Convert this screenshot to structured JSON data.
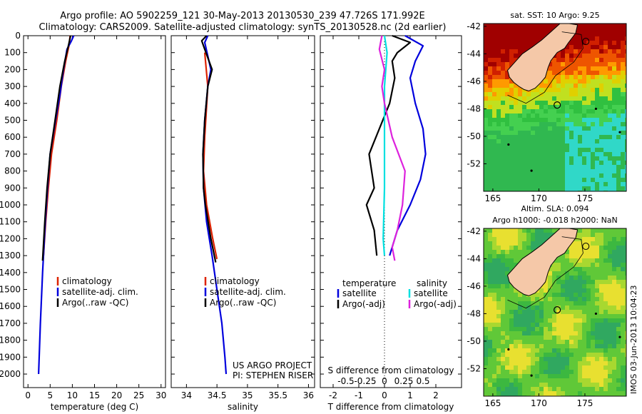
{
  "header": {
    "line1": "Argo profile: AO 5902259_121 30-May-2013 20130530_239 47.726S 171.992E",
    "line2": "Climatology: CARS2009. Satellite-adjusted climatology: synTS_20130528.nc (2d earlier)"
  },
  "credits": {
    "project": "US ARGO PROJECT",
    "pi": "PI: STEPHEN RISER"
  },
  "timestamp": "IMOS 03-Jun-2013 10:04:23",
  "colors": {
    "climatology": "#dd2200",
    "satellite": "#0000dd",
    "argo": "#000000",
    "salinity_satellite": "#00e0e0",
    "salinity_argo": "#dd22dd",
    "land": "#f5c8a8"
  },
  "chart_data": [
    {
      "id": "temperature",
      "type": "line",
      "xlabel": "temperature (deg C)",
      "xlim": [
        -1,
        31
      ],
      "ylim": [
        2080,
        0
      ],
      "xticks": [
        0,
        5,
        10,
        15,
        20,
        25,
        30
      ],
      "yticks": [
        0,
        100,
        200,
        300,
        400,
        500,
        600,
        700,
        800,
        900,
        1000,
        1100,
        1200,
        1300,
        1400,
        1500,
        1600,
        1700,
        1800,
        1900,
        2000
      ],
      "legend": [
        "climatology",
        "satellite-adj. clim.",
        "Argo(..raw -QC)"
      ],
      "series": [
        {
          "name": "climatology",
          "color": "#dd2200",
          "points": [
            [
              9.5,
              0
            ],
            [
              9.3,
              50
            ],
            [
              8.5,
              150
            ],
            [
              7.5,
              300
            ],
            [
              6.5,
              500
            ],
            [
              5.3,
              700
            ],
            [
              4.6,
              900
            ],
            [
              4.0,
              1100
            ],
            [
              3.5,
              1300
            ]
          ]
        },
        {
          "name": "satellite-adj. clim.",
          "color": "#0000dd",
          "points": [
            [
              10.3,
              0
            ],
            [
              9.8,
              30
            ],
            [
              8.8,
              80
            ],
            [
              8.0,
              200
            ],
            [
              7.2,
              350
            ],
            [
              6.2,
              500
            ],
            [
              5.0,
              700
            ],
            [
              4.4,
              900
            ],
            [
              3.9,
              1100
            ],
            [
              3.3,
              1400
            ],
            [
              2.8,
              1700
            ],
            [
              2.4,
              2000
            ]
          ]
        },
        {
          "name": "Argo(..raw -QC)",
          "color": "#000000",
          "points": [
            [
              9.6,
              0
            ],
            [
              9.2,
              50
            ],
            [
              8.3,
              150
            ],
            [
              7.2,
              300
            ],
            [
              6.1,
              500
            ],
            [
              5.0,
              700
            ],
            [
              4.3,
              900
            ],
            [
              3.8,
              1100
            ],
            [
              3.3,
              1330
            ]
          ]
        }
      ]
    },
    {
      "id": "salinity",
      "type": "line",
      "xlabel": "salinity",
      "xlim": [
        33.75,
        36.1
      ],
      "ylim": [
        2080,
        0
      ],
      "xticks": [
        34,
        34.5,
        35,
        35.5,
        36
      ],
      "legend": [
        "climatology",
        "satellite-adj. clim.",
        "Argo(..raw -QC)"
      ],
      "series": [
        {
          "name": "climatology",
          "color": "#dd2200",
          "points": [
            [
              34.3,
              100
            ],
            [
              34.35,
              300
            ],
            [
              34.3,
              600
            ],
            [
              34.28,
              800
            ],
            [
              34.33,
              1000
            ],
            [
              34.43,
              1200
            ],
            [
              34.5,
              1320
            ]
          ]
        },
        {
          "name": "satellite-adj. clim.",
          "color": "#0000dd",
          "points": [
            [
              34.35,
              0
            ],
            [
              34.3,
              40
            ],
            [
              34.35,
              120
            ],
            [
              34.4,
              200
            ],
            [
              34.35,
              300
            ],
            [
              34.3,
              500
            ],
            [
              34.27,
              700
            ],
            [
              34.28,
              900
            ],
            [
              34.33,
              1100
            ],
            [
              34.42,
              1300
            ],
            [
              34.5,
              1500
            ],
            [
              34.58,
              1700
            ],
            [
              34.63,
              1900
            ],
            [
              34.65,
              2000
            ]
          ]
        },
        {
          "name": "Argo(..raw -QC)",
          "color": "#000000",
          "points": [
            [
              34.33,
              0
            ],
            [
              34.25,
              30
            ],
            [
              34.3,
              80
            ],
            [
              34.42,
              200
            ],
            [
              34.35,
              300
            ],
            [
              34.3,
              500
            ],
            [
              34.27,
              700
            ],
            [
              34.28,
              900
            ],
            [
              34.31,
              1000
            ],
            [
              34.4,
              1200
            ],
            [
              34.48,
              1340
            ]
          ]
        }
      ]
    },
    {
      "id": "differences",
      "type": "line",
      "xlabel": "T difference from climatology",
      "secondary_xlabel": "S difference from climatology",
      "xlim": [
        -2.5,
        3
      ],
      "ylim": [
        2080,
        0
      ],
      "xticks": [
        -2,
        -1,
        0,
        1,
        2
      ],
      "secondary_xticks": [
        -0.5,
        -0.25,
        0,
        0.25,
        0.5
      ],
      "legend_headers": [
        "temperature",
        "salinity"
      ],
      "legend": [
        "satellite",
        "Argo(-adj)",
        "satellite",
        "Argo(-adj)"
      ],
      "series": [
        {
          "name": "satellite",
          "color": "#0000dd",
          "points": [
            [
              0.8,
              0
            ],
            [
              1.5,
              60
            ],
            [
              1.2,
              150
            ],
            [
              1.0,
              250
            ],
            [
              1.2,
              400
            ],
            [
              1.5,
              550
            ],
            [
              1.6,
              700
            ],
            [
              1.4,
              850
            ],
            [
              1.0,
              1000
            ],
            [
              0.5,
              1150
            ],
            [
              0.2,
              1300
            ]
          ]
        },
        {
          "name": "Argo(-adj)",
          "color": "#000000",
          "points": [
            [
              0.3,
              0
            ],
            [
              1.0,
              40
            ],
            [
              0.5,
              100
            ],
            [
              0.3,
              150
            ],
            [
              0.4,
              250
            ],
            [
              0.2,
              400
            ],
            [
              -0.2,
              550
            ],
            [
              -0.6,
              700
            ],
            [
              -0.4,
              900
            ],
            [
              -0.7,
              1000
            ],
            [
              -0.4,
              1150
            ],
            [
              -0.3,
              1300
            ]
          ]
        },
        {
          "name": "satellite",
          "color": "#00e0e0",
          "points": [
            [
              0,
              0
            ],
            [
              0.1,
              100
            ],
            [
              0,
              300
            ],
            [
              0,
              600
            ],
            [
              0,
              900
            ],
            [
              -0.05,
              1200
            ],
            [
              0,
              1300
            ]
          ]
        },
        {
          "name": "Argo(-adj)",
          "color": "#dd22dd",
          "points": [
            [
              -0.1,
              0
            ],
            [
              -0.2,
              80
            ],
            [
              0,
              200
            ],
            [
              -0.1,
              300
            ],
            [
              0,
              400
            ],
            [
              0.3,
              600
            ],
            [
              0.8,
              800
            ],
            [
              0.7,
              1000
            ],
            [
              0.5,
              1150
            ],
            [
              0.3,
              1250
            ],
            [
              0.4,
              1330
            ]
          ]
        }
      ]
    },
    {
      "id": "sst-map",
      "type": "heatmap",
      "title": "sat. SST: 10 Argo: 9.25",
      "xticks": [
        165,
        170,
        175
      ],
      "yticks": [
        -42,
        -44,
        -46,
        -48,
        -50,
        -52
      ],
      "xlim": [
        164,
        179.5
      ],
      "ylim": [
        -54,
        -41.8
      ],
      "profile_marker": {
        "lon": 171.992,
        "lat": -47.726
      }
    },
    {
      "id": "sla-map",
      "type": "heatmap",
      "title": "Altim. SLA: 0.094",
      "subtitle": "Argo h1000: -0.018 h2000: NaN",
      "xticks": [
        165,
        170,
        175
      ],
      "yticks": [
        -42,
        -44,
        -46,
        -48,
        -50,
        -52
      ],
      "xlim": [
        164,
        179.5
      ],
      "ylim": [
        -54,
        -41.8
      ],
      "profile_marker": {
        "lon": 171.992,
        "lat": -47.726
      }
    }
  ]
}
